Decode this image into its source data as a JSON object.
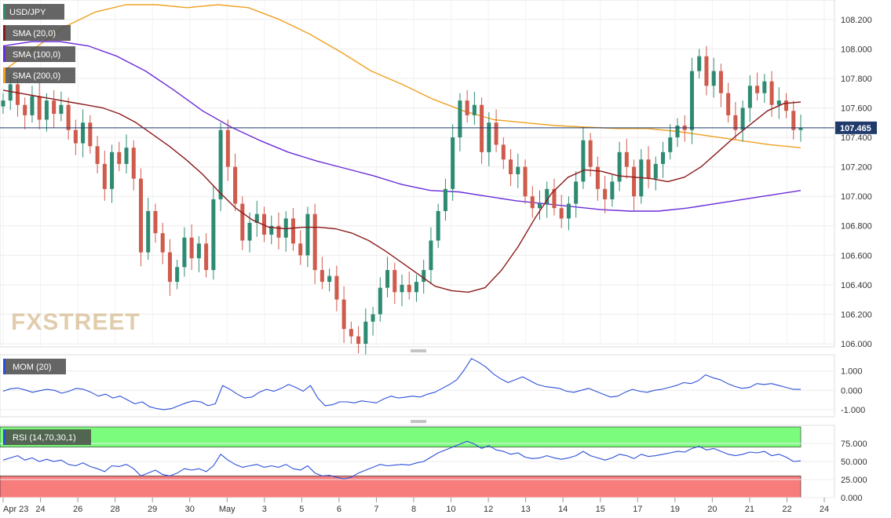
{
  "panels": {
    "price": {
      "symbol": "USD/JPY",
      "indicators": [
        {
          "label": "SMA (20,0)",
          "color": "#8b1a1a"
        },
        {
          "label": "SMA (100,0)",
          "color": "#6a2bd9"
        },
        {
          "label": "SMA (200,0)",
          "color": "#f0a020"
        }
      ],
      "last_price_label": "107.465",
      "watermark": "FXSTREET"
    },
    "mom": {
      "label": "MOM (20)",
      "color": "#2b4fd9"
    },
    "rsi": {
      "label": "RSI (14,70,30,1)",
      "color": "#2b4fd9"
    }
  },
  "x_labels": [
    "Apr 23",
    "24",
    "26",
    "28",
    "29",
    "30",
    "May",
    "3",
    "5",
    "6",
    "7",
    "8",
    "10",
    "12",
    "13",
    "14",
    "15",
    "17",
    "19",
    "20",
    "21",
    "22",
    "24"
  ],
  "colors": {
    "bull": "#2e8b72",
    "bear": "#cf5b4c",
    "sma20": "#8b1a1a",
    "sma100": "#6a2bd9",
    "sma200": "#f0a020",
    "line": "#2b4fd9",
    "overbought": "#7cfc7c",
    "oversold": "#f77c7c"
  },
  "chart_data": [
    {
      "type": "candlestick",
      "title": "USD/JPY",
      "ylim": [
        106.0,
        108.3
      ],
      "y_ticks": [
        "108.200",
        "108.000",
        "107.800",
        "107.600",
        "107.400",
        "107.200",
        "107.000",
        "106.800",
        "106.600",
        "106.400",
        "106.200",
        "106.000"
      ],
      "last_price": 107.465,
      "closes": [
        107.65,
        107.76,
        107.62,
        107.55,
        107.68,
        107.52,
        107.65,
        107.56,
        107.62,
        107.45,
        107.36,
        107.5,
        107.34,
        107.22,
        107.05,
        107.3,
        107.22,
        107.33,
        107.12,
        106.62,
        106.9,
        106.75,
        106.62,
        106.42,
        106.52,
        106.72,
        106.58,
        106.68,
        106.5,
        106.98,
        107.45,
        107.2,
        106.95,
        106.7,
        106.82,
        106.88,
        106.74,
        106.8,
        106.72,
        106.85,
        106.68,
        106.6,
        106.88,
        106.5,
        106.42,
        106.46,
        106.3,
        106.1,
        106.05,
        106.0,
        106.15,
        106.2,
        106.38,
        106.5,
        106.35,
        106.4,
        106.35,
        106.42,
        106.5,
        106.7,
        106.9,
        107.05,
        107.4,
        107.65,
        107.55,
        107.62,
        107.3,
        107.5,
        107.35,
        107.25,
        107.15,
        107.2,
        107.0,
        106.92,
        106.95,
        107.05,
        106.92,
        106.85,
        106.95,
        107.1,
        107.38,
        107.2,
        107.05,
        106.98,
        107.1,
        107.3,
        107.2,
        107.0,
        107.25,
        107.12,
        107.22,
        107.3,
        107.4,
        107.48,
        107.45,
        107.85,
        107.95,
        107.75,
        107.85,
        107.7,
        107.55,
        107.45,
        107.6,
        107.75,
        107.7,
        107.78,
        107.62,
        107.65,
        107.58,
        107.45,
        107.465
      ],
      "sma_20": [
        107.72,
        107.7,
        107.68,
        107.66,
        107.64,
        107.62,
        107.6,
        107.56,
        107.5,
        107.42,
        107.34,
        107.25,
        107.15,
        107.03,
        106.92,
        106.84,
        106.79,
        106.78,
        106.79,
        106.79,
        106.78,
        106.75,
        106.7,
        106.63,
        106.55,
        106.47,
        106.39,
        106.36,
        106.35,
        106.38,
        106.5,
        106.66,
        106.85,
        107.02,
        107.13,
        107.18,
        107.17,
        107.14,
        107.13,
        107.12,
        107.1,
        107.13,
        107.2,
        107.3,
        107.4,
        107.49,
        107.58,
        107.63,
        107.64
      ],
      "sma_100": [
        108.02,
        108.05,
        108.05,
        108.02,
        107.95,
        107.85,
        107.72,
        107.58,
        107.47,
        107.38,
        107.3,
        107.24,
        107.19,
        107.14,
        107.08,
        107.04,
        107.03,
        107.0,
        106.97,
        106.95,
        106.93,
        106.91,
        106.9,
        106.9,
        106.92,
        106.95,
        106.98,
        107.01,
        107.04
      ],
      "sma_200": [
        107.85,
        108.0,
        108.15,
        108.25,
        108.3,
        108.3,
        108.28,
        108.3,
        108.28,
        108.2,
        108.1,
        107.98,
        107.85,
        107.76,
        107.66,
        107.58,
        107.52,
        107.5,
        107.48,
        107.47,
        107.46,
        107.46,
        107.44,
        107.41,
        107.38,
        107.35,
        107.33
      ]
    },
    {
      "type": "line",
      "title": "MOM (20)",
      "ylim": [
        -1.25,
        1.6
      ],
      "y_ticks": [
        "1.000",
        "0.000",
        "-1.000"
      ],
      "values": [
        -0.05,
        0.08,
        0.12,
        0.02,
        -0.1,
        -0.02,
        0.05,
        0.0,
        -0.15,
        -0.05,
        0.1,
        0.05,
        -0.1,
        -0.3,
        -0.2,
        -0.4,
        -0.3,
        -0.5,
        -0.7,
        -0.6,
        -0.85,
        -0.95,
        -1.0,
        -0.95,
        -0.8,
        -0.65,
        -0.55,
        -0.6,
        -0.8,
        -0.7,
        0.25,
        0.05,
        -0.2,
        -0.4,
        -0.35,
        -0.1,
        0.05,
        -0.05,
        0.1,
        0.3,
        0.15,
        -0.05,
        0.25,
        -0.4,
        -0.8,
        -0.75,
        -0.6,
        -0.6,
        -0.65,
        -0.55,
        -0.6,
        -0.65,
        -0.45,
        -0.3,
        -0.4,
        -0.35,
        -0.3,
        -0.35,
        -0.2,
        -0.1,
        0.1,
        0.3,
        0.55,
        1.05,
        1.65,
        1.45,
        1.2,
        0.85,
        0.6,
        0.4,
        0.55,
        0.7,
        0.5,
        0.3,
        0.2,
        0.15,
        0.1,
        -0.05,
        -0.1,
        0.0,
        0.1,
        -0.05,
        -0.2,
        -0.35,
        -0.3,
        -0.1,
        0.05,
        -0.05,
        -0.1,
        0.0,
        0.05,
        0.15,
        0.25,
        0.4,
        0.35,
        0.5,
        0.8,
        0.65,
        0.55,
        0.35,
        0.2,
        0.1,
        0.15,
        0.35,
        0.3,
        0.35,
        0.25,
        0.15,
        0.05,
        0.05
      ],
      "line_color": "#2b4fd9"
    },
    {
      "type": "line",
      "title": "RSI (14,70,30,1)",
      "ylim": [
        0,
        100
      ],
      "y_ticks": [
        "75.000",
        "50.000",
        "25.000",
        "0.000"
      ],
      "overbought": 70,
      "oversold": 30,
      "values": [
        52,
        55,
        58,
        52,
        55,
        50,
        53,
        50,
        52,
        46,
        44,
        48,
        43,
        40,
        36,
        44,
        43,
        46,
        40,
        30,
        34,
        38,
        32,
        30,
        34,
        40,
        38,
        40,
        36,
        44,
        60,
        52,
        46,
        42,
        44,
        46,
        42,
        44,
        42,
        46,
        40,
        38,
        44,
        34,
        30,
        31,
        28,
        26,
        28,
        34,
        38,
        42,
        46,
        44,
        45,
        46,
        45,
        48,
        50,
        56,
        62,
        66,
        70,
        74,
        78,
        74,
        68,
        72,
        66,
        64,
        60,
        62,
        56,
        54,
        55,
        58,
        55,
        53,
        55,
        58,
        64,
        58,
        55,
        52,
        55,
        60,
        58,
        54,
        60,
        57,
        58,
        60,
        62,
        64,
        63,
        68,
        71,
        66,
        68,
        64,
        60,
        58,
        60,
        63,
        62,
        64,
        58,
        60,
        56,
        50,
        51
      ],
      "line_color": "#2b4fd9"
    }
  ]
}
